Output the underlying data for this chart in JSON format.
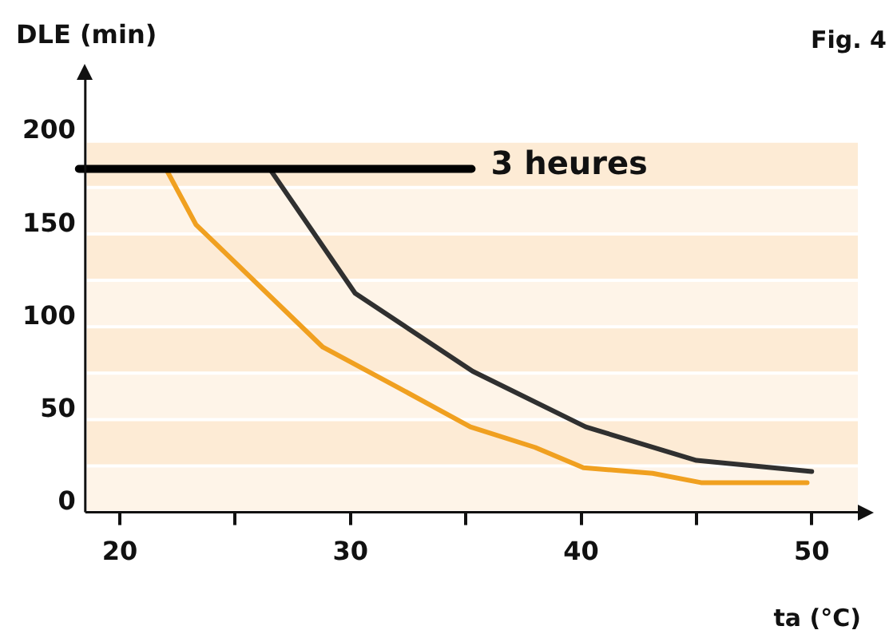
{
  "chart_data": {
    "type": "line",
    "xlabel": "ta (°C)",
    "ylabel": "DLE (min)",
    "annotations": [
      "Fig. 4"
    ],
    "xlim": [
      18.5,
      52
    ],
    "ylim": [
      -5,
      228
    ],
    "xticks": [
      20,
      {
        "value": 25,
        "label": null
      },
      30,
      {
        "value": 35,
        "label": null
      },
      40,
      {
        "value": 45,
        "label": null
      },
      50
    ],
    "yticks": [
      0,
      50,
      100,
      150,
      200
    ],
    "series": [
      {
        "color": "#f0a020",
        "x": [
          22,
          23.3,
          28.8,
          32.1,
          35.2,
          38,
          40.1,
          43.1,
          45.2,
          49.8
        ],
        "values": [
          180,
          150,
          84,
          62,
          41,
          30,
          19,
          16,
          11,
          11
        ]
      },
      {
        "color": "#303030",
        "x": [
          26.5,
          30.2,
          35.3,
          40.2,
          45,
          50
        ],
        "values": [
          180,
          113,
          71,
          41,
          23,
          17
        ]
      }
    ],
    "ref_lines": [
      {
        "axis": "y",
        "value": 180,
        "label": "3 heures",
        "color": "#000000"
      }
    ],
    "bands": [
      {
        "axis": "y",
        "from": -5,
        "to": 20,
        "color": "#fef4e8"
      },
      {
        "axis": "y",
        "from": 20,
        "to": 45,
        "color": "#fdebd5"
      },
      {
        "axis": "y",
        "from": 45,
        "to": 70,
        "color": "#fef4e8"
      },
      {
        "axis": "y",
        "from": 70,
        "to": 95,
        "color": "#fdebd5"
      },
      {
        "axis": "y",
        "from": 95,
        "to": 120,
        "color": "#fef4e8"
      },
      {
        "axis": "y",
        "from": 120,
        "to": 145,
        "color": "#fdebd5"
      },
      {
        "axis": "y",
        "from": 145,
        "to": 170,
        "color": "#fef4e8"
      },
      {
        "axis": "y",
        "from": 170,
        "to": 195,
        "color": "#fdebd5"
      }
    ],
    "grid": false,
    "legend": false,
    "marker": "none",
    "line_style": "solid"
  }
}
